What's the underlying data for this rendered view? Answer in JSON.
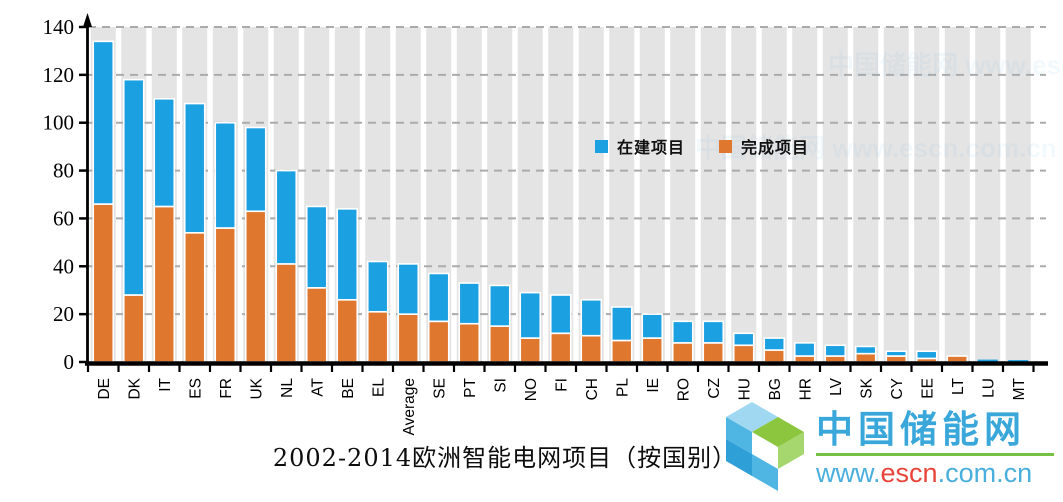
{
  "chart_data": {
    "type": "bar",
    "stacked": true,
    "title": "2002-2014欧洲智能电网项目（按国别）",
    "xlabel": "",
    "ylabel": "",
    "ylim": [
      0,
      140
    ],
    "yticks": [
      0,
      20,
      40,
      60,
      80,
      100,
      120,
      140
    ],
    "grid": "horizontal-dashed",
    "legend_position": "inside-top-right",
    "categories": [
      "DE",
      "DK",
      "IT",
      "ES",
      "FR",
      "UK",
      "NL",
      "AT",
      "BE",
      "EL",
      "Average",
      "SE",
      "PT",
      "SI",
      "NO",
      "FI",
      "CH",
      "PL",
      "IE",
      "RO",
      "CZ",
      "HU",
      "BG",
      "HR",
      "LV",
      "SK",
      "CY",
      "EE",
      "LT",
      "LU",
      "MT"
    ],
    "series": [
      {
        "name": "在建项目",
        "color": "#1ba0e1",
        "values": [
          68,
          90,
          45,
          54,
          44,
          35,
          39,
          34,
          38,
          21,
          21,
          20,
          17,
          17,
          19,
          16,
          15,
          14,
          10,
          9,
          9,
          5,
          5,
          5.5,
          4.5,
          3,
          2,
          3,
          0,
          1,
          0.8
        ]
      },
      {
        "name": "完成项目",
        "color": "#e0772f",
        "values": [
          66,
          28,
          65,
          54,
          56,
          63,
          41,
          31,
          26,
          21,
          20,
          17,
          16,
          15,
          10,
          12,
          11,
          9,
          10,
          8,
          8,
          7,
          5,
          2.5,
          2.5,
          3.5,
          2.5,
          1.5,
          2.5,
          0,
          0
        ]
      }
    ],
    "totals": [
      134,
      118,
      110,
      108,
      100,
      98,
      80,
      65,
      64,
      42,
      41,
      37,
      33,
      32,
      29,
      28,
      26,
      23,
      20,
      17,
      17,
      12,
      10,
      8,
      7,
      6.5,
      4.5,
      4.5,
      2.5,
      1,
      0.8
    ]
  },
  "legend": {
    "items": [
      {
        "label": "在建项目",
        "color": "#1ba0e1"
      },
      {
        "label": "完成项目",
        "color": "#e0772f"
      }
    ]
  },
  "title": {
    "text": "2002-2014欧洲智能电网项目（按国别）"
  },
  "watermark": {
    "site_name": "中国储能网",
    "url_prefix": "www.",
    "url_highlight": "escn",
    "url_suffix": ".com.cn",
    "ghost_text": "中国储能网 www.escn.com.cn",
    "brand_blue": "#3aa7da",
    "brand_green": "#76c043",
    "brand_red": "#e8453a"
  },
  "colors": {
    "bar_blue": "#1ba0e1",
    "bar_orange": "#e0772f",
    "column_backdrop": "#e4e4e4",
    "gridline": "#ababab",
    "axis": "#000000"
  }
}
